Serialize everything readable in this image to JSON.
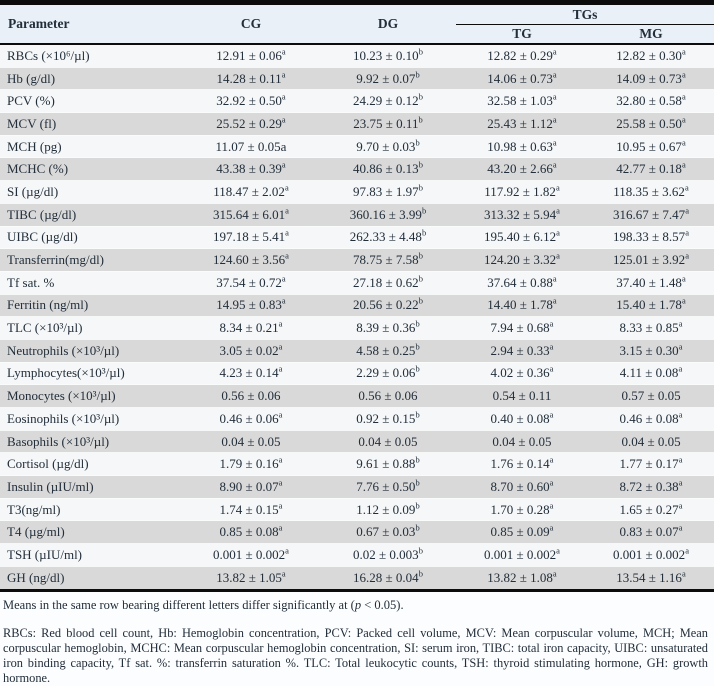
{
  "colors": {
    "header_bg": "#e9f0f8",
    "row_alt_bg": "#d9d9d9",
    "row_white_bg": "#f5f7f8",
    "text": "#222e3a",
    "rule": "#0c0c0c"
  },
  "table": {
    "header": {
      "parameter": "Parameter",
      "cg": "CG",
      "dg": "DG",
      "tgs": "TGs",
      "tg": "TG",
      "mg": "MG"
    },
    "rows": [
      {
        "parameter": "RBCs (×10⁶/µl)",
        "cg": "12.91 ± 0.06^a",
        "dg": "10.23 ± 0.10^b",
        "tg": "12.82 ± 0.29^a",
        "mg": "12.82 ± 0.30^a"
      },
      {
        "parameter": "Hb (g/dl)",
        "cg": "14.28 ± 0.11^a",
        "dg": "9.92 ± 0.07^b",
        "tg": "14.06 ± 0.73^a",
        "mg": "14.09 ± 0.73^a"
      },
      {
        "parameter": "PCV (%)",
        "cg": "32.92 ± 0.50^a",
        "dg": "24.29 ± 0.12^b",
        "tg": "32.58 ± 1.03^a",
        "mg": "32.80 ± 0.58^a"
      },
      {
        "parameter": "MCV (fl)",
        "cg": "25.52 ± 0.29^a",
        "dg": "23.75 ± 0.11^b",
        "tg": "25.43 ± 1.12^a",
        "mg": "25.58 ± 0.50^a"
      },
      {
        "parameter": "MCH (pg)",
        "cg": "11.07 ± 0.05a",
        "dg": "9.70 ± 0.03^b",
        "tg": "10.98 ± 0.63^a",
        "mg": "10.95 ± 0.67^a"
      },
      {
        "parameter": "MCHC (%)",
        "cg": "43.38 ± 0.39^a",
        "dg": "40.86 ± 0.13^b",
        "tg": "43.20 ± 2.66^a",
        "mg": "42.77 ± 0.18^a"
      },
      {
        "parameter": "SI (µg/dl)",
        "cg": "118.47 ± 2.02^a",
        "dg": "97.83 ± 1.97^b",
        "tg": "117.92 ± 1.82^a",
        "mg": "118.35 ± 3.62^a"
      },
      {
        "parameter": "TIBC (µg/dl)",
        "cg": "315.64 ± 6.01^a",
        "dg": "360.16 ± 3.99^b",
        "tg": "313.32 ± 5.94^a",
        "mg": "316.67 ± 7.47^a"
      },
      {
        "parameter": "UIBC (µg/dl)",
        "cg": "197.18 ± 5.41^a",
        "dg": "262.33 ± 4.48^b",
        "tg": "195.40 ± 6.12^a",
        "mg": "198.33 ± 8.57^a"
      },
      {
        "parameter": "Transferrin(mg/dl)",
        "cg": "124.60 ± 3.56^a",
        "dg": "78.75 ± 7.58^b",
        "tg": "124.20 ± 3.32^a",
        "mg": "125.01 ± 3.92^a"
      },
      {
        "parameter": "Tf sat. %",
        "cg": "37.54 ± 0.72^a",
        "dg": "27.18 ± 0.62^b",
        "tg": "37.64 ± 0.88^a",
        "mg": "37.40 ± 1.48^a"
      },
      {
        "parameter": "Ferritin (ng/ml)",
        "cg": "14.95 ± 0.83^a",
        "dg": "20.56 ± 0.22^b",
        "tg": "14.40 ± 1.78^a",
        "mg": "15.40 ± 1.78^a"
      },
      {
        "parameter": "TLC (×10³/µl)",
        "cg": "8.34 ± 0.21^a",
        "dg": "8.39 ± 0.36^b",
        "tg": "7.94 ± 0.68^a",
        "mg": "8.33 ± 0.85^a"
      },
      {
        "parameter": "Neutrophils (×10³/µl)",
        "cg": "3.05 ± 0.02^a",
        "dg": "4.58 ± 0.25^b",
        "tg": "2.94 ± 0.33^a",
        "mg": "3.15 ± 0.30^a"
      },
      {
        "parameter": "Lymphocytes(×10³/µl)",
        "cg": "4.23 ± 0.14^a",
        "dg": "2.29 ± 0.06^b",
        "tg": "4.02 ± 0.36^a",
        "mg": "4.11 ± 0.08^a"
      },
      {
        "parameter": "Monocytes (×10³/µl)",
        "cg": "0.56 ± 0.06",
        "dg": "0.56 ± 0.06",
        "tg": "0.54 ± 0.11",
        "mg": "0.57 ± 0.05"
      },
      {
        "parameter": "Eosinophils (×10³/µl)",
        "cg": "0.46 ± 0.06^a",
        "dg": "0.92 ± 0.15^b",
        "tg": "0.40 ± 0.08^a",
        "mg": "0.46 ± 0.08^a"
      },
      {
        "parameter": "Basophils (×10³/µl)",
        "cg": "0.04 ± 0.05",
        "dg": "0.04 ± 0.05",
        "tg": "0.04 ± 0.05",
        "mg": "0.04 ± 0.05"
      },
      {
        "parameter": "Cortisol (µg/dl)",
        "cg": "1.79 ± 0.16^a",
        "dg": "9.61 ± 0.88^b",
        "tg": "1.76 ± 0.14^a",
        "mg": "1.77 ± 0.17^a"
      },
      {
        "parameter": "Insulin (µIU/ml)",
        "cg": "8.90 ± 0.07^a",
        "dg": "7.76 ± 0.50^b",
        "tg": "8.70 ± 0.60^a",
        "mg": "8.72 ± 0.38^a"
      },
      {
        "parameter": "T3(ng/ml)",
        "cg": "1.74 ± 0.15^a",
        "dg": "1.12 ± 0.09^b",
        "tg": "1.70 ± 0.28^a",
        "mg": "1.65 ± 0.27^a"
      },
      {
        "parameter": "T4 (µg/ml)",
        "cg": "0.85 ± 0.08^a",
        "dg": "0.67 ± 0.03^b",
        "tg": "0.85 ± 0.09^a",
        "mg": "0.83 ± 0.07^a"
      },
      {
        "parameter": "TSH (µIU/ml)",
        "cg": "0.001 ± 0.002^a",
        "dg": "0.02 ± 0.003^b",
        "tg": "0.001 ± 0.002^a",
        "mg": "0.001 ± 0.002^a"
      },
      {
        "parameter": "GH (ng/dl)",
        "cg": "13.82 ± 1.05^a",
        "dg": "16.28 ± 0.04^b",
        "tg": "13.82 ± 1.08^a",
        "mg": "13.54 ± 1.16^a"
      }
    ],
    "footnote": {
      "prefix": "Means in the same row bearing different letters differ significantly at (",
      "italic": "p",
      "suffix": " < 0.05)."
    },
    "abbreviations": "RBCs: Red blood cell count, Hb: Hemoglobin concentration, PCV: Packed cell volume, MCV: Mean corpuscular volume, MCH; Mean corpuscular hemoglobin, MCHC: Mean corpuscular hemoglobin concentration, SI: serum iron, TIBC: total iron capacity, UIBC: unsaturated iron binding capacity, Tf sat. %: transferrin saturation %. TLC: Total leukocytic counts, TSH: thyroid stimulating hormone, GH: growth hormone."
  }
}
